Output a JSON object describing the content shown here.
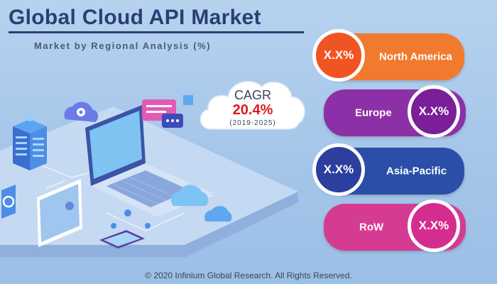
{
  "header": {
    "title": "Global Cloud API Market",
    "subtitle": "Market by Regional Analysis (%)"
  },
  "cagr": {
    "label": "CAGR",
    "value": "20.4%",
    "period": "(2019-2025)"
  },
  "regions": [
    {
      "name": "North America",
      "value": "X.X%",
      "band_color": "#f07a2e",
      "circle_color": "#f05422"
    },
    {
      "name": "Europe",
      "value": "X.X%",
      "band_color": "#8d2fa7",
      "circle_color": "#7a1f98"
    },
    {
      "name": "Asia-Pacific",
      "value": "X.X%",
      "band_color": "#2b4fa8",
      "circle_color": "#2c3f9e"
    },
    {
      "name": "RoW",
      "value": "X.X%",
      "band_color": "#d63b92",
      "circle_color": "#d42d8f"
    }
  ],
  "footer": {
    "copyright": "© 2020 Infinium Global Research. All Rights Reserved."
  },
  "colors": {
    "background": "#a9c9ec",
    "title": "#2b3f72",
    "cagr_value": "#e01a1a"
  }
}
